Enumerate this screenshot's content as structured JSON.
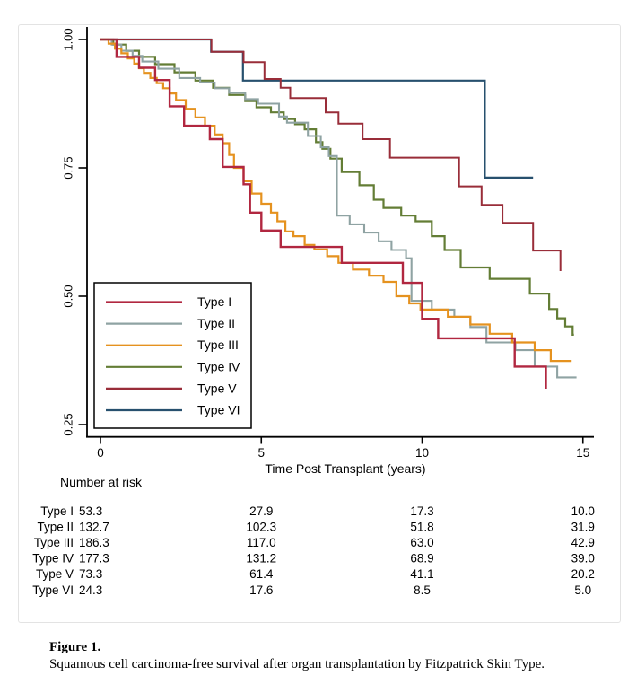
{
  "figure": {
    "caption_label": "Figure 1.",
    "caption_text": "Squamous cell carcinoma-free survival after organ transplantation by Fitzpatrick Skin Type."
  },
  "chart_data": {
    "type": "line",
    "subtype": "kaplan-meier-step-survival",
    "title": "",
    "xlabel": "Time Post Transplant (years)",
    "ylabel": "",
    "xlim": [
      0,
      15.4
    ],
    "ylim": [
      0.22,
      1.0
    ],
    "x_ticks": [
      0,
      5,
      10,
      15
    ],
    "y_ticks": [
      1.0,
      0.75,
      0.5,
      0.25
    ],
    "y_tick_labels": [
      "1.00",
      "0.75",
      "0.50",
      "0.25"
    ],
    "grid": false,
    "legend_position": "inside-lower-left",
    "axis_color": "#000000",
    "series": [
      {
        "name": "Type I",
        "color": "#b12740",
        "width": 2.4,
        "end": 13.85,
        "steps": [
          [
            0,
            1
          ],
          [
            0.5,
            0.966
          ],
          [
            1.2,
            0.945
          ],
          [
            1.7,
            0.921
          ],
          [
            2.15,
            0.87
          ],
          [
            2.6,
            0.832
          ],
          [
            3.4,
            0.806
          ],
          [
            3.8,
            0.752
          ],
          [
            4.45,
            0.718
          ],
          [
            4.65,
            0.663
          ],
          [
            5.0,
            0.628
          ],
          [
            5.6,
            0.596
          ],
          [
            7.5,
            0.565
          ],
          [
            9.4,
            0.526
          ],
          [
            10.0,
            0.456
          ],
          [
            10.5,
            0.418
          ],
          [
            12.88,
            0.363
          ],
          [
            13.85,
            0.32
          ]
        ]
      },
      {
        "name": "Type II",
        "color": "#8fa3a3",
        "width": 2.1,
        "end": 14.8,
        "steps": [
          [
            0,
            1
          ],
          [
            0.35,
            0.99
          ],
          [
            0.65,
            0.978
          ],
          [
            1.0,
            0.968
          ],
          [
            1.3,
            0.957
          ],
          [
            1.8,
            0.943
          ],
          [
            2.45,
            0.925
          ],
          [
            3.1,
            0.916
          ],
          [
            3.55,
            0.905
          ],
          [
            4.0,
            0.896
          ],
          [
            4.5,
            0.884
          ],
          [
            4.9,
            0.875
          ],
          [
            5.55,
            0.85
          ],
          [
            5.8,
            0.838
          ],
          [
            6.45,
            0.812
          ],
          [
            6.85,
            0.79
          ],
          [
            7.1,
            0.773
          ],
          [
            7.35,
            0.657
          ],
          [
            7.75,
            0.64
          ],
          [
            8.2,
            0.624
          ],
          [
            8.65,
            0.607
          ],
          [
            9.05,
            0.59
          ],
          [
            9.5,
            0.574
          ],
          [
            9.67,
            0.491
          ],
          [
            10.3,
            0.474
          ],
          [
            11.0,
            0.46
          ],
          [
            11.5,
            0.44
          ],
          [
            12.0,
            0.41
          ],
          [
            12.9,
            0.395
          ],
          [
            13.5,
            0.363
          ],
          [
            14.2,
            0.342
          ]
        ]
      },
      {
        "name": "Type III",
        "color": "#e5921f",
        "width": 2.2,
        "end": 14.65,
        "steps": [
          [
            0,
            1
          ],
          [
            0.25,
            0.992
          ],
          [
            0.45,
            0.982
          ],
          [
            0.65,
            0.973
          ],
          [
            0.85,
            0.963
          ],
          [
            1.05,
            0.953
          ],
          [
            1.2,
            0.944
          ],
          [
            1.35,
            0.935
          ],
          [
            1.55,
            0.925
          ],
          [
            1.75,
            0.915
          ],
          [
            1.95,
            0.905
          ],
          [
            2.15,
            0.895
          ],
          [
            2.35,
            0.882
          ],
          [
            2.65,
            0.865
          ],
          [
            2.95,
            0.848
          ],
          [
            3.25,
            0.832
          ],
          [
            3.55,
            0.815
          ],
          [
            3.8,
            0.798
          ],
          [
            4.0,
            0.775
          ],
          [
            4.15,
            0.75
          ],
          [
            4.45,
            0.724
          ],
          [
            4.7,
            0.7
          ],
          [
            5.0,
            0.68
          ],
          [
            5.3,
            0.663
          ],
          [
            5.5,
            0.646
          ],
          [
            5.75,
            0.626
          ],
          [
            6.0,
            0.617
          ],
          [
            6.35,
            0.6
          ],
          [
            6.65,
            0.591
          ],
          [
            7.05,
            0.578
          ],
          [
            7.4,
            0.565
          ],
          [
            7.85,
            0.552
          ],
          [
            8.35,
            0.54
          ],
          [
            8.8,
            0.528
          ],
          [
            9.2,
            0.5
          ],
          [
            9.6,
            0.486
          ],
          [
            9.95,
            0.474
          ],
          [
            10.8,
            0.46
          ],
          [
            11.5,
            0.445
          ],
          [
            12.1,
            0.427
          ],
          [
            12.8,
            0.41
          ],
          [
            13.5,
            0.395
          ],
          [
            14.0,
            0.374
          ]
        ]
      },
      {
        "name": "Type IV",
        "color": "#637d35",
        "width": 2.2,
        "end": 14.72,
        "steps": [
          [
            0,
            1
          ],
          [
            0.4,
            0.99
          ],
          [
            0.8,
            0.978
          ],
          [
            1.2,
            0.966
          ],
          [
            1.7,
            0.952
          ],
          [
            2.3,
            0.936
          ],
          [
            2.95,
            0.92
          ],
          [
            3.5,
            0.906
          ],
          [
            4.0,
            0.892
          ],
          [
            4.5,
            0.88
          ],
          [
            4.85,
            0.868
          ],
          [
            5.3,
            0.858
          ],
          [
            5.7,
            0.845
          ],
          [
            6.05,
            0.835
          ],
          [
            6.35,
            0.825
          ],
          [
            6.7,
            0.8
          ],
          [
            6.9,
            0.787
          ],
          [
            7.15,
            0.768
          ],
          [
            7.5,
            0.742
          ],
          [
            8.05,
            0.716
          ],
          [
            8.5,
            0.688
          ],
          [
            8.8,
            0.672
          ],
          [
            9.35,
            0.657
          ],
          [
            9.8,
            0.646
          ],
          [
            10.3,
            0.617
          ],
          [
            10.7,
            0.59
          ],
          [
            11.2,
            0.556
          ],
          [
            12.1,
            0.534
          ],
          [
            13.35,
            0.505
          ],
          [
            13.95,
            0.475
          ],
          [
            14.2,
            0.457
          ],
          [
            14.45,
            0.441
          ],
          [
            14.68,
            0.425
          ]
        ]
      },
      {
        "name": "Type V",
        "color": "#992d39",
        "width": 2.0,
        "end": 14.3,
        "steps": [
          [
            0,
            1
          ],
          [
            3.45,
            0.976
          ],
          [
            4.45,
            0.956
          ],
          [
            5.1,
            0.923
          ],
          [
            5.6,
            0.906
          ],
          [
            5.9,
            0.886
          ],
          [
            7.0,
            0.858
          ],
          [
            7.4,
            0.836
          ],
          [
            8.15,
            0.806
          ],
          [
            9.0,
            0.77
          ],
          [
            11.15,
            0.714
          ],
          [
            11.85,
            0.678
          ],
          [
            12.5,
            0.643
          ],
          [
            13.45,
            0.589
          ],
          [
            14.3,
            0.549
          ]
        ]
      },
      {
        "name": "Type VI",
        "color": "#27506e",
        "width": 2.2,
        "end": 13.45,
        "steps": [
          [
            0,
            1
          ],
          [
            3.44,
            0.976
          ],
          [
            4.43,
            0.92
          ],
          [
            11.95,
            0.731
          ]
        ]
      }
    ],
    "legend": {
      "entries": [
        "Type I",
        "Type II",
        "Type III",
        "Type IV",
        "Type V",
        "Type VI"
      ]
    },
    "risk_table": {
      "title": "Number at risk",
      "time_points": [
        0,
        5,
        10,
        15
      ],
      "rows": [
        {
          "name": "Type I",
          "values": [
            "53.3",
            "27.9",
            "17.3",
            "10.0"
          ]
        },
        {
          "name": "Type II",
          "values": [
            "132.7",
            "102.3",
            "51.8",
            "31.9"
          ]
        },
        {
          "name": "Type III",
          "values": [
            "186.3",
            "117.0",
            "63.0",
            "42.9"
          ]
        },
        {
          "name": "Type IV",
          "values": [
            "177.3",
            "131.2",
            "68.9",
            "39.0"
          ]
        },
        {
          "name": "Type V",
          "values": [
            "73.3",
            "61.4",
            "41.1",
            "20.2"
          ]
        },
        {
          "name": "Type VI",
          "values": [
            "24.3",
            "17.6",
            "8.5",
            "5.0"
          ]
        }
      ]
    }
  }
}
